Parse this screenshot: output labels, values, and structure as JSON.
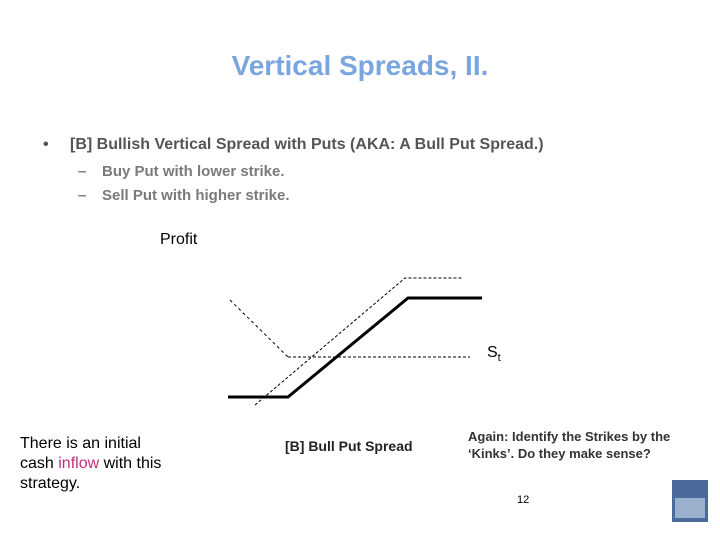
{
  "header": {
    "title": "Vertical Spreads, II."
  },
  "bullets": {
    "main": {
      "marker": "•",
      "text": "[B] Bullish Vertical Spread with Puts (AKA: A Bull Put Spread.)"
    },
    "sub": [
      {
        "marker": "–",
        "text": "Buy Put with lower strike."
      },
      {
        "marker": "–",
        "text": "Sell Put with higher strike."
      }
    ]
  },
  "diagram": {
    "y_label": "Profit",
    "x_label": "S",
    "x_label_sub": "t",
    "caption": "[B] Bull Put Spread"
  },
  "notes": {
    "left": [
      "There is an initial",
      "cash ",
      "inflow",
      " with this",
      "strategy."
    ],
    "right": [
      "Again: Identify the Strikes by the",
      "‘Kinks’. Do they make sense?"
    ]
  },
  "footer": {
    "page_number": "12"
  }
}
